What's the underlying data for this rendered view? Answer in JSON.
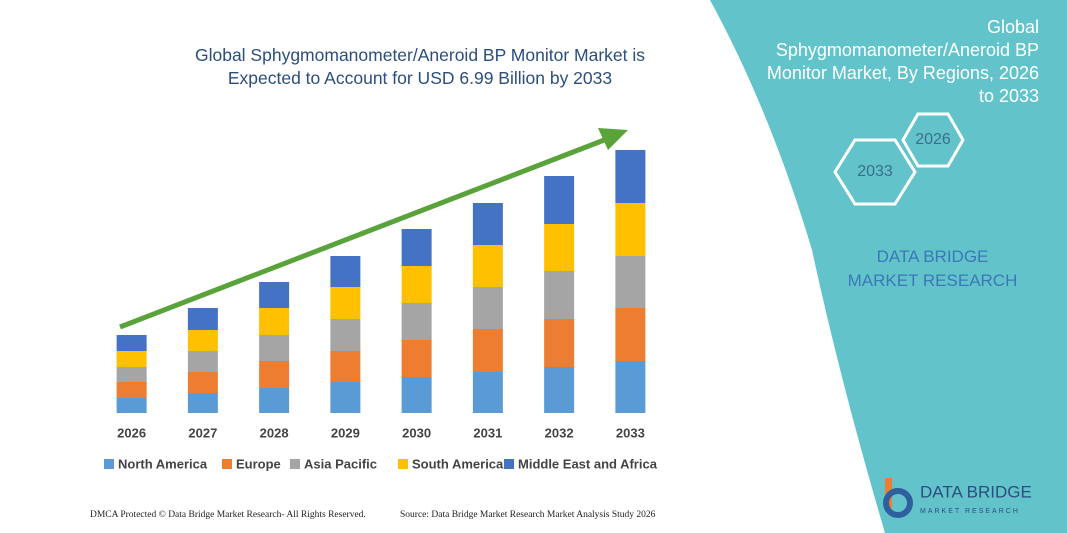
{
  "chart_data": {
    "type": "bar",
    "stacked": true,
    "title": "Global Sphygmomanometer/Aneroid BP Monitor Market is Expected to Account for USD 6.99 Billion by 2033",
    "categories": [
      "2026",
      "2027",
      "2028",
      "2029",
      "2030",
      "2031",
      "2032",
      "2033"
    ],
    "series": [
      {
        "name": "North America",
        "color": "#5b9bd5",
        "values": [
          15,
          20,
          25,
          31,
          36,
          41,
          46,
          52
        ]
      },
      {
        "name": "Europe",
        "color": "#ed7d31",
        "values": [
          16,
          21,
          27,
          31,
          37,
          43,
          48,
          53
        ]
      },
      {
        "name": "Asia Pacific",
        "color": "#a5a5a5",
        "values": [
          15,
          21,
          26,
          32,
          37,
          42,
          48,
          52
        ]
      },
      {
        "name": "South America",
        "color": "#ffc000",
        "values": [
          16,
          21,
          27,
          32,
          37,
          42,
          47,
          53
        ]
      },
      {
        "name": "Middle East and Africa",
        "color": "#4472c4",
        "values": [
          16,
          22,
          26,
          31,
          37,
          42,
          48,
          53
        ]
      }
    ],
    "ylim": [
      0,
      270
    ]
  },
  "panel": {
    "title": "Global Sphygmomanometer/Aneroid BP Monitor Market, By Regions, 2026 to 2033",
    "hexagons": [
      "2033",
      "2026"
    ],
    "brand": "DATA BRIDGE MARKET RESEARCH"
  },
  "logo": {
    "name": "DATA BRIDGE",
    "tagline": "MARKET RESEARCH"
  },
  "footer": {
    "left": "DMCA Protected © Data Bridge Market Research- All Rights Reserved.",
    "right": "Source: Data Bridge Market Research Market Analysis Study 2026"
  }
}
